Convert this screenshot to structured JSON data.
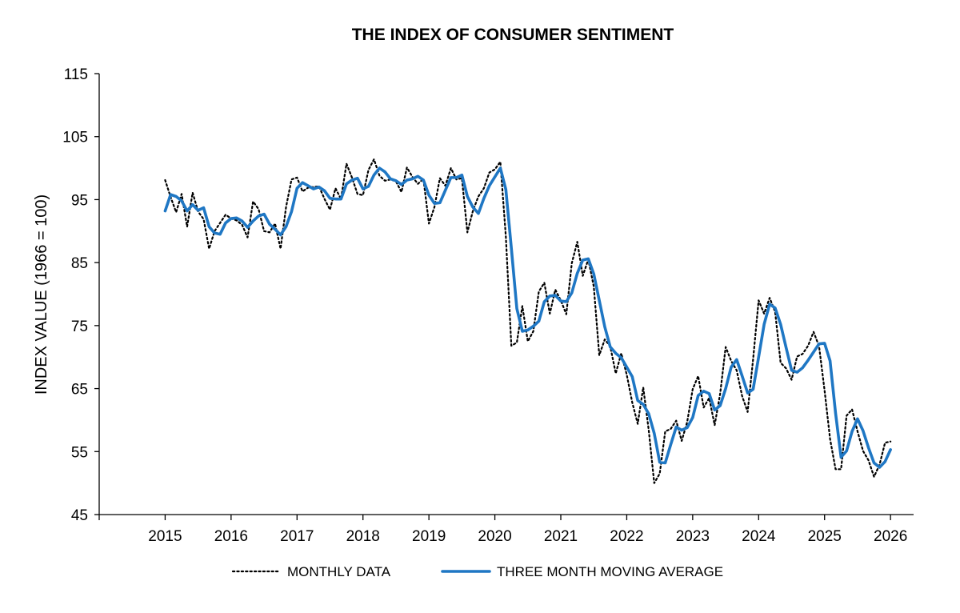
{
  "chart_data": {
    "type": "line",
    "title": "THE INDEX OF CONSUMER SENTIMENT",
    "ylabel": "INDEX VALUE (1966 = 100)",
    "xlabel": "",
    "ylim": [
      45,
      115
    ],
    "yticks": [
      45,
      55,
      65,
      75,
      85,
      95,
      105,
      115
    ],
    "xticks": [
      "2015",
      "2016",
      "2017",
      "2018",
      "2019",
      "2020",
      "2021",
      "2022",
      "2023",
      "2024",
      "2025",
      "2026"
    ],
    "x_start": "2015-01",
    "grid": false,
    "legend_position": "bottom",
    "colors": {
      "monthly": "#000000",
      "moving_average": "#1f77c4"
    },
    "series": [
      {
        "name": "MONTHLY DATA",
        "style": "dotted",
        "values": [
          98.1,
          95.4,
          93.0,
          95.9,
          90.7,
          96.1,
          93.1,
          91.9,
          87.2,
          90.0,
          91.3,
          92.6,
          92.0,
          91.7,
          91.0,
          89.0,
          94.7,
          93.5,
          90.0,
          89.8,
          91.2,
          87.2,
          93.8,
          98.2,
          98.5,
          96.3,
          96.9,
          97.0,
          97.1,
          95.1,
          93.4,
          96.8,
          95.1,
          100.7,
          98.5,
          95.9,
          95.7,
          99.7,
          101.4,
          98.8,
          98.0,
          98.2,
          97.9,
          96.2,
          100.1,
          98.6,
          97.5,
          98.3,
          91.2,
          93.8,
          98.4,
          97.2,
          100.0,
          98.2,
          98.4,
          89.8,
          93.2,
          95.5,
          96.8,
          99.3,
          99.8,
          101.0,
          89.1,
          71.8,
          72.3,
          78.1,
          72.5,
          74.1,
          80.4,
          81.8,
          76.9,
          80.7,
          79.0,
          76.8,
          84.9,
          88.3,
          82.9,
          85.5,
          81.2,
          70.3,
          72.8,
          71.7,
          67.4,
          70.6,
          67.2,
          62.8,
          59.4,
          65.2,
          58.4,
          50.0,
          51.5,
          58.2,
          58.6,
          59.9,
          56.7,
          59.7,
          64.9,
          67.0,
          62.0,
          63.5,
          59.2,
          64.2,
          71.6,
          69.4,
          67.9,
          63.8,
          61.3,
          69.7,
          79.0,
          76.9,
          79.4,
          77.2,
          69.1,
          68.2,
          66.4,
          70.1,
          70.5,
          71.8,
          74.0,
          71.7,
          64.7,
          57.0,
          52.2,
          52.2,
          60.7,
          61.7,
          58.2,
          55.1,
          53.6,
          51.0,
          52.9,
          56.4,
          56.6
        ]
      },
      {
        "name": "THREE MONTH MOVING AVERAGE",
        "style": "solid",
        "values": [
          93.2,
          95.8,
          95.5,
          94.8,
          93.2,
          94.2,
          93.3,
          93.7,
          90.7,
          89.7,
          89.5,
          91.3,
          92.0,
          92.1,
          91.6,
          90.6,
          91.6,
          92.4,
          92.7,
          91.1,
          90.3,
          89.4,
          90.7,
          93.1,
          96.8,
          97.7,
          97.2,
          96.7,
          97.0,
          96.4,
          95.2,
          95.1,
          95.1,
          97.5,
          98.1,
          98.4,
          96.7,
          97.1,
          98.9,
          100.0,
          99.4,
          98.3,
          98.0,
          97.4,
          98.1,
          98.3,
          98.7,
          98.1,
          95.7,
          94.4,
          94.5,
          96.5,
          98.5,
          98.5,
          98.9,
          95.5,
          93.8,
          92.8,
          95.2,
          97.2,
          98.6,
          100.0,
          96.6,
          87.3,
          77.7,
          74.1,
          74.3,
          74.9,
          75.7,
          78.8,
          79.7,
          79.8,
          78.9,
          78.8,
          80.2,
          83.3,
          85.4,
          85.6,
          83.2,
          79.0,
          74.8,
          71.6,
          70.6,
          69.9,
          68.4,
          66.9,
          63.1,
          62.5,
          61.0,
          57.9,
          53.3,
          53.2,
          56.1,
          58.9,
          58.4,
          58.8,
          60.4,
          63.9,
          64.6,
          64.2,
          61.6,
          62.3,
          65.0,
          68.4,
          69.6,
          67.0,
          64.3,
          64.9,
          70.0,
          75.2,
          78.4,
          77.8,
          75.2,
          71.5,
          67.9,
          67.6,
          68.3,
          69.5,
          70.8,
          72.1,
          72.2,
          69.4,
          61.1,
          54.1,
          55.1,
          58.2,
          60.2,
          58.3,
          55.6,
          53.2,
          52.5,
          53.4,
          55.3
        ]
      }
    ]
  }
}
